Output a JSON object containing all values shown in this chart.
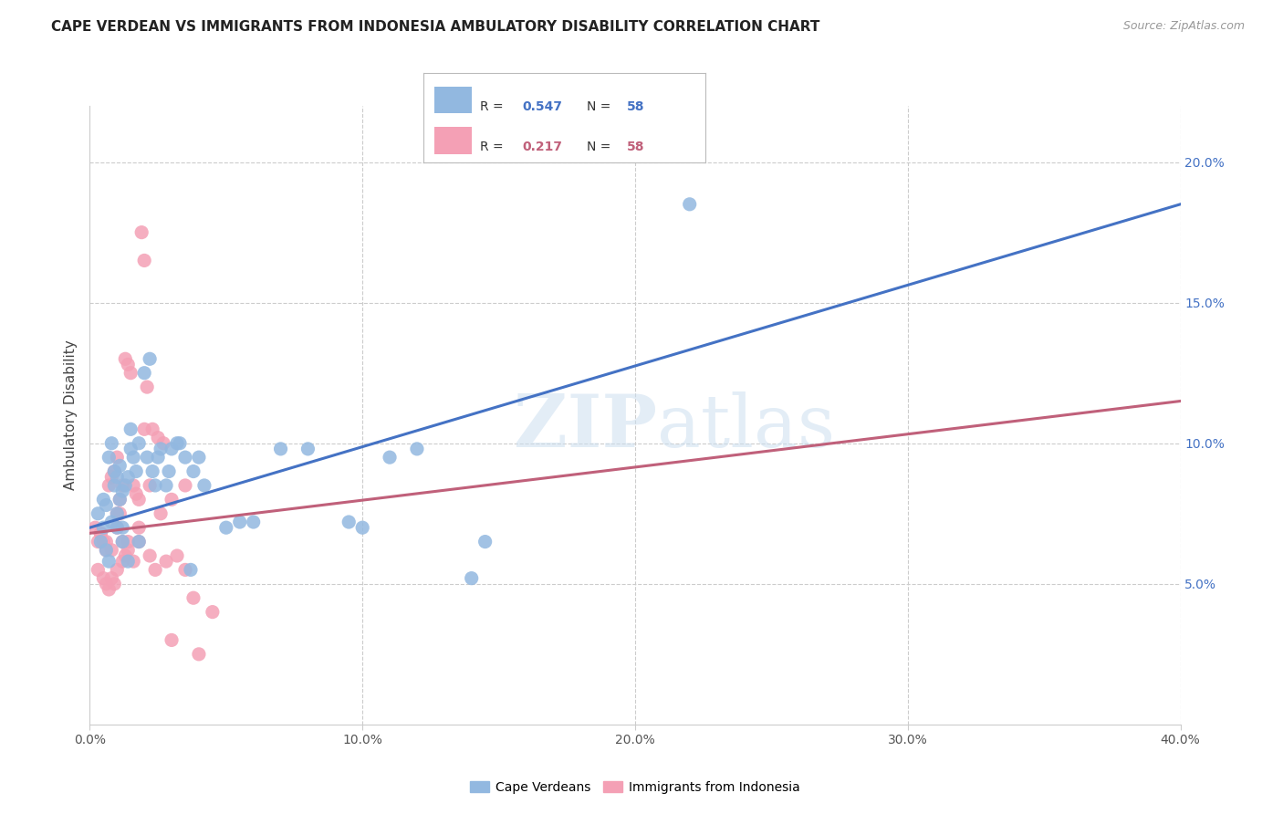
{
  "title": "CAPE VERDEAN VS IMMIGRANTS FROM INDONESIA AMBULATORY DISABILITY CORRELATION CHART",
  "source": "Source: ZipAtlas.com",
  "ylabel": "Ambulatory Disability",
  "watermark": "ZIPatlas",
  "blue_color": "#92b8e0",
  "pink_color": "#f4a0b5",
  "blue_line_color": "#4472c4",
  "pink_line_color": "#c0607a",
  "xmin": 0.0,
  "xmax": 40.0,
  "ymin": 0.0,
  "ymax": 22.0,
  "blue_R": "0.547",
  "blue_N": "58",
  "pink_R": "0.217",
  "pink_N": "58",
  "blue_line_x0": 0.0,
  "blue_line_y0": 7.0,
  "blue_line_x1": 40.0,
  "blue_line_y1": 18.5,
  "pink_line_x0": 0.0,
  "pink_line_y0": 6.8,
  "pink_line_x1": 40.0,
  "pink_line_y1": 11.5,
  "blue_scatter_x": [
    0.3,
    0.5,
    0.5,
    0.6,
    0.7,
    0.8,
    0.8,
    0.9,
    0.9,
    1.0,
    1.0,
    1.1,
    1.1,
    1.2,
    1.2,
    1.3,
    1.4,
    1.5,
    1.5,
    1.6,
    1.7,
    1.8,
    2.0,
    2.2,
    2.3,
    2.5,
    2.6,
    2.8,
    3.0,
    3.2,
    3.5,
    3.8,
    4.0,
    4.2,
    5.0,
    5.5,
    6.0,
    7.0,
    8.0,
    9.5,
    10.0,
    11.0,
    12.0,
    14.0,
    14.5,
    0.4,
    0.6,
    0.7,
    1.0,
    1.2,
    1.4,
    1.8,
    2.1,
    2.4,
    2.9,
    3.3,
    3.7,
    22.0
  ],
  "blue_scatter_y": [
    7.5,
    8.0,
    7.0,
    7.8,
    9.5,
    10.0,
    7.2,
    8.5,
    9.0,
    8.8,
    7.5,
    8.0,
    9.2,
    8.3,
    7.0,
    8.5,
    8.8,
    10.5,
    9.8,
    9.5,
    9.0,
    10.0,
    12.5,
    13.0,
    9.0,
    9.5,
    9.8,
    8.5,
    9.8,
    10.0,
    9.5,
    9.0,
    9.5,
    8.5,
    7.0,
    7.2,
    7.2,
    9.8,
    9.8,
    7.2,
    7.0,
    9.5,
    9.8,
    5.2,
    6.5,
    6.5,
    6.2,
    5.8,
    7.0,
    6.5,
    5.8,
    6.5,
    9.5,
    8.5,
    9.0,
    10.0,
    5.5,
    18.5
  ],
  "pink_scatter_x": [
    0.2,
    0.3,
    0.4,
    0.5,
    0.6,
    0.7,
    0.8,
    0.9,
    1.0,
    1.0,
    1.1,
    1.2,
    1.3,
    1.4,
    1.5,
    1.6,
    1.7,
    1.8,
    1.9,
    2.0,
    2.1,
    2.3,
    2.5,
    2.7,
    3.0,
    3.5,
    0.3,
    0.5,
    0.6,
    0.7,
    0.8,
    0.9,
    1.0,
    1.1,
    1.2,
    1.3,
    1.4,
    1.6,
    1.8,
    2.0,
    2.2,
    2.4,
    2.8,
    3.2,
    3.8,
    4.5,
    0.4,
    0.6,
    0.8,
    1.0,
    1.2,
    1.4,
    1.8,
    2.2,
    2.6,
    3.0,
    3.5,
    4.0
  ],
  "pink_scatter_y": [
    7.0,
    6.5,
    6.8,
    6.5,
    6.2,
    8.5,
    8.8,
    9.0,
    7.5,
    9.5,
    8.0,
    8.5,
    13.0,
    12.8,
    12.5,
    8.5,
    8.2,
    8.0,
    17.5,
    16.5,
    12.0,
    10.5,
    10.2,
    10.0,
    8.0,
    8.5,
    5.5,
    5.2,
    5.0,
    4.8,
    5.2,
    5.0,
    5.5,
    7.5,
    5.8,
    6.0,
    6.5,
    5.8,
    6.5,
    10.5,
    6.0,
    5.5,
    5.8,
    6.0,
    4.5,
    4.0,
    6.8,
    6.5,
    6.2,
    7.0,
    6.5,
    6.2,
    7.0,
    8.5,
    7.5,
    3.0,
    5.5,
    2.5
  ],
  "xticks": [
    0,
    10,
    20,
    30,
    40
  ],
  "xtick_labels": [
    "0.0%",
    "10.0%",
    "20.0%",
    "30.0%",
    "40.0%"
  ],
  "yticks": [
    5,
    10,
    15,
    20
  ],
  "ytick_labels": [
    "5.0%",
    "10.0%",
    "15.0%",
    "20.0%"
  ]
}
